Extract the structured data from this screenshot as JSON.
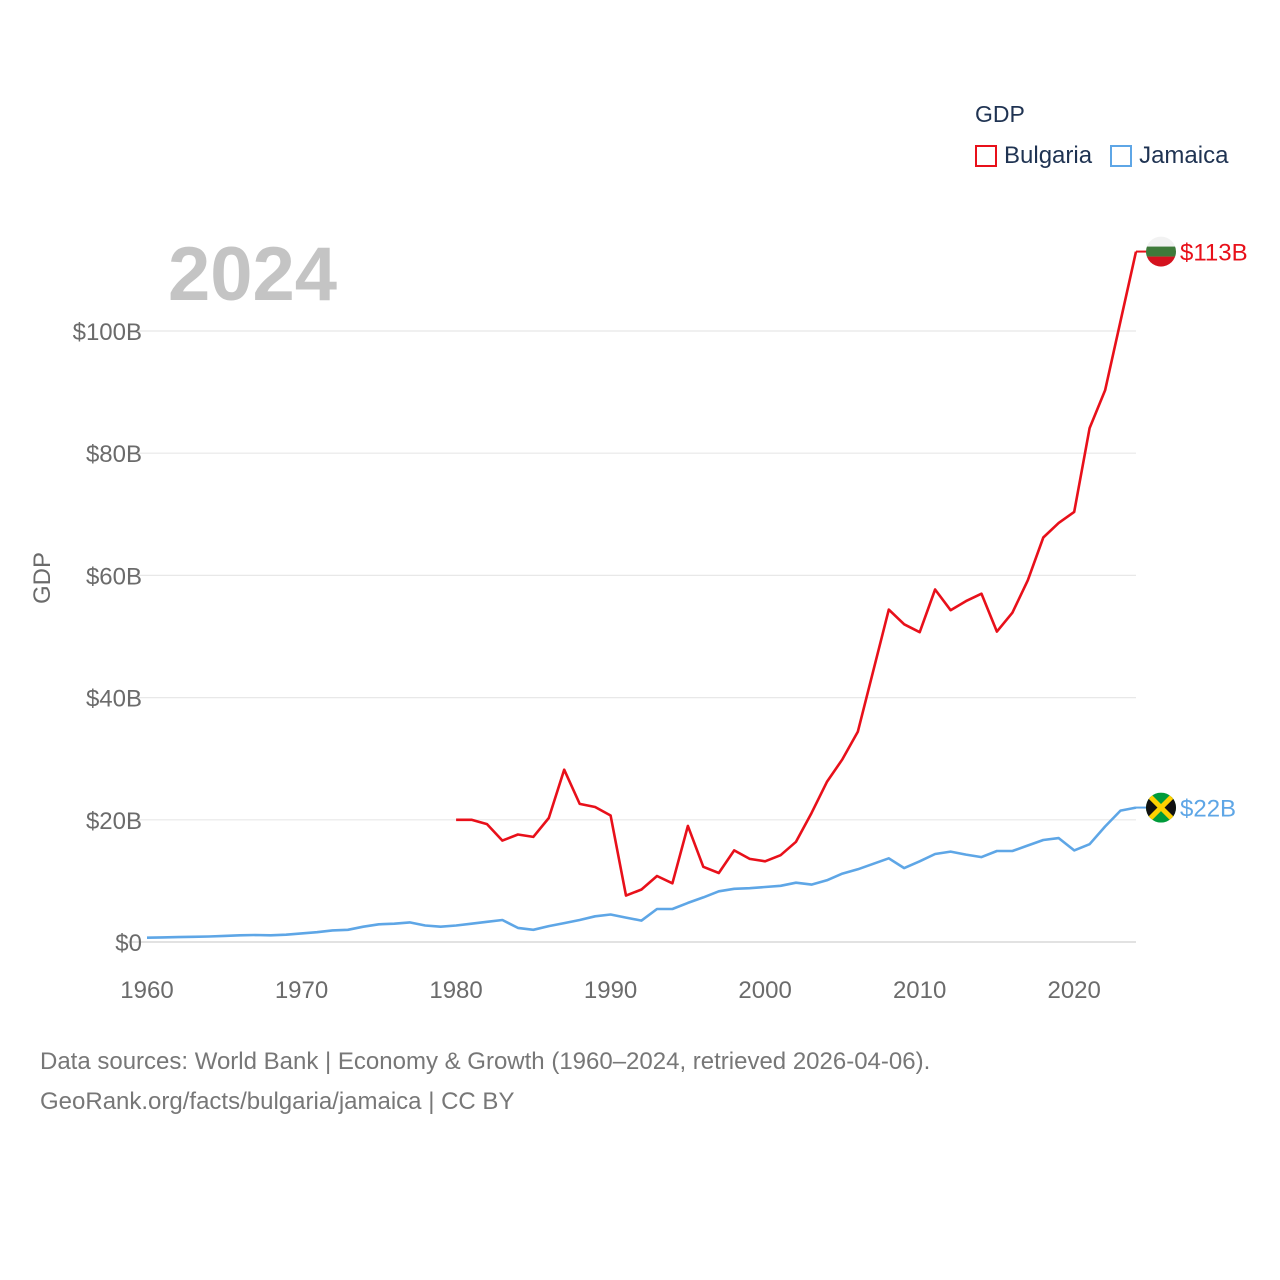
{
  "legend": {
    "title": "GDP",
    "items": [
      {
        "name": "Bulgaria",
        "color": "#e8101a"
      },
      {
        "name": "Jamaica",
        "color": "#5ea6e6"
      }
    ]
  },
  "year_label": "2024",
  "footer": {
    "line1": "Data sources: World Bank | Economy & Growth (1960–2024, retrieved 2026-04-06).",
    "line2": "GeoRank.org/facts/bulgaria/jamaica | CC BY"
  },
  "chart_data": {
    "type": "line",
    "title": "GDP",
    "xlabel": "",
    "ylabel": "GDP",
    "xlim": [
      1960,
      2024
    ],
    "ylim": [
      0,
      115
    ],
    "grid": true,
    "legend_position": "top-right",
    "x_ticks": [
      1960,
      1970,
      1980,
      1990,
      2000,
      2010,
      2020
    ],
    "y_ticks": [
      {
        "value": 0,
        "label": "$0"
      },
      {
        "value": 20,
        "label": "$20B"
      },
      {
        "value": 40,
        "label": "$40B"
      },
      {
        "value": 60,
        "label": "$60B"
      },
      {
        "value": 80,
        "label": "$80B"
      },
      {
        "value": 100,
        "label": "$100B"
      }
    ],
    "series": [
      {
        "name": "Bulgaria",
        "color": "#e8101a",
        "end_label": "$113B",
        "x": [
          1980,
          1981,
          1982,
          1983,
          1984,
          1985,
          1986,
          1987,
          1988,
          1989,
          1990,
          1991,
          1992,
          1993,
          1994,
          1995,
          1996,
          1997,
          1998,
          1999,
          2000,
          2001,
          2002,
          2003,
          2004,
          2005,
          2006,
          2007,
          2008,
          2009,
          2010,
          2011,
          2012,
          2013,
          2014,
          2015,
          2016,
          2017,
          2018,
          2019,
          2020,
          2021,
          2022,
          2023,
          2024
        ],
        "values": [
          20,
          20,
          19.3,
          16.6,
          17.6,
          17.2,
          20.3,
          28.2,
          22.6,
          22.1,
          20.7,
          7.6,
          8.6,
          10.8,
          9.6,
          19.0,
          12.3,
          11.3,
          15.0,
          13.6,
          13.2,
          14.2,
          16.4,
          21.1,
          26.2,
          29.9,
          34.4,
          44.4,
          54.4,
          52.0,
          50.7,
          57.7,
          54.3,
          55.8,
          57.0,
          50.8,
          53.9,
          59.2,
          66.2,
          68.6,
          70.4,
          84.1,
          90.3,
          101.6,
          113.0
        ]
      },
      {
        "name": "Jamaica",
        "color": "#5ea6e6",
        "end_label": "$22B",
        "x": [
          1960,
          1961,
          1962,
          1963,
          1964,
          1965,
          1966,
          1967,
          1968,
          1969,
          1970,
          1971,
          1972,
          1973,
          1974,
          1975,
          1976,
          1977,
          1978,
          1979,
          1980,
          1981,
          1982,
          1983,
          1984,
          1985,
          1986,
          1987,
          1988,
          1989,
          1990,
          1991,
          1992,
          1993,
          1994,
          1995,
          1996,
          1997,
          1998,
          1999,
          2000,
          2001,
          2002,
          2003,
          2004,
          2005,
          2006,
          2007,
          2008,
          2009,
          2010,
          2011,
          2012,
          2013,
          2014,
          2015,
          2016,
          2017,
          2018,
          2019,
          2020,
          2021,
          2022,
          2023,
          2024
        ],
        "values": [
          0.7,
          0.75,
          0.8,
          0.85,
          0.9,
          1.0,
          1.1,
          1.15,
          1.1,
          1.2,
          1.4,
          1.6,
          1.9,
          2.0,
          2.5,
          2.9,
          3.0,
          3.2,
          2.7,
          2.5,
          2.7,
          3.0,
          3.3,
          3.6,
          2.3,
          2.0,
          2.6,
          3.1,
          3.6,
          4.2,
          4.5,
          4.0,
          3.5,
          5.4,
          5.4,
          6.4,
          7.3,
          8.3,
          8.7,
          8.8,
          9.0,
          9.2,
          9.7,
          9.4,
          10.1,
          11.2,
          11.9,
          12.8,
          13.7,
          12.1,
          13.2,
          14.4,
          14.8,
          14.3,
          13.9,
          14.9,
          14.9,
          15.8,
          16.7,
          17.0,
          15.0,
          16.0,
          18.9,
          21.5,
          22.0
        ]
      }
    ]
  }
}
